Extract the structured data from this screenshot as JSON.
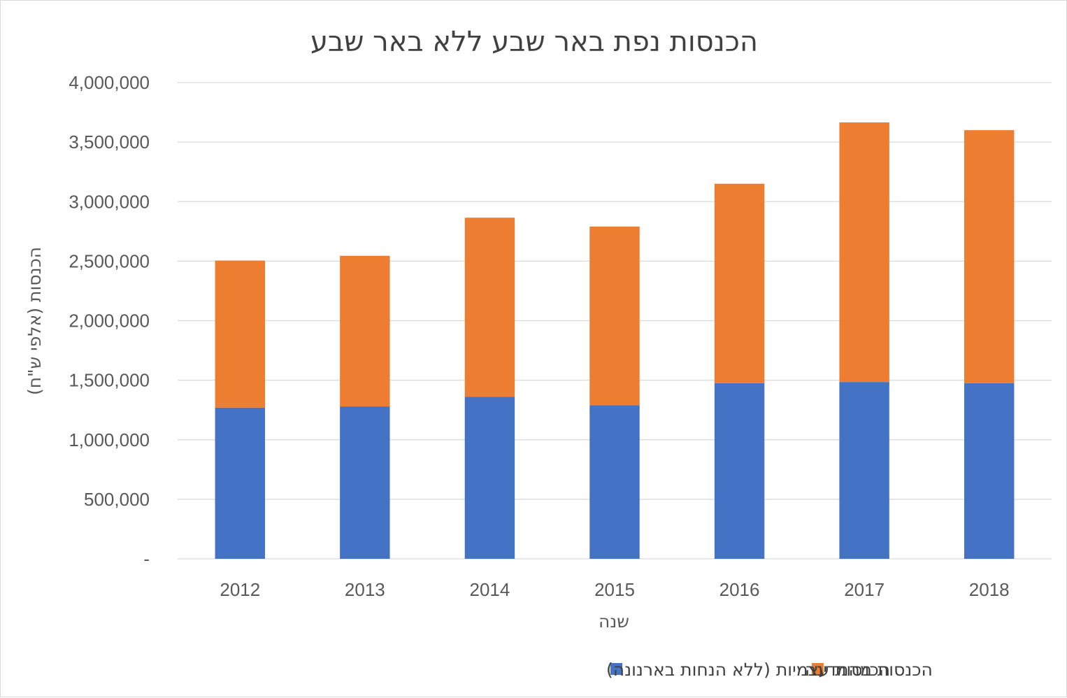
{
  "chart_data": {
    "type": "bar",
    "stacked": true,
    "title": "הכנסות נפת באר שבע ללא באר שבע",
    "xlabel": "שנה",
    "ylabel": "הכנסות (אלפי ש\"ח)",
    "ylim": [
      0,
      4000000
    ],
    "yticks": [
      0,
      500000,
      1000000,
      1500000,
      2000000,
      2500000,
      3000000,
      3500000,
      4000000
    ],
    "ytick_labels": [
      "-",
      "500,000",
      "1,000,000",
      "1,500,000",
      "2,000,000",
      "2,500,000",
      "3,000,000",
      "3,500,000",
      "4,000,000"
    ],
    "grid": true,
    "legend_position": "bottom",
    "categories": [
      "2012",
      "2013",
      "2014",
      "2015",
      "2016",
      "2017",
      "2018"
    ],
    "series": [
      {
        "name": "הכנסות עצמיות (ללא הנחות בארנונה)",
        "color": "#4472C4",
        "values": [
          1270000,
          1280000,
          1360000,
          1290000,
          1475000,
          1485000,
          1475000
        ]
      },
      {
        "name": "הכנסות מהמדינה",
        "color": "#ED7D31",
        "values": [
          1235000,
          1265000,
          1505000,
          1500000,
          1675000,
          2180000,
          2125000
        ]
      }
    ]
  }
}
